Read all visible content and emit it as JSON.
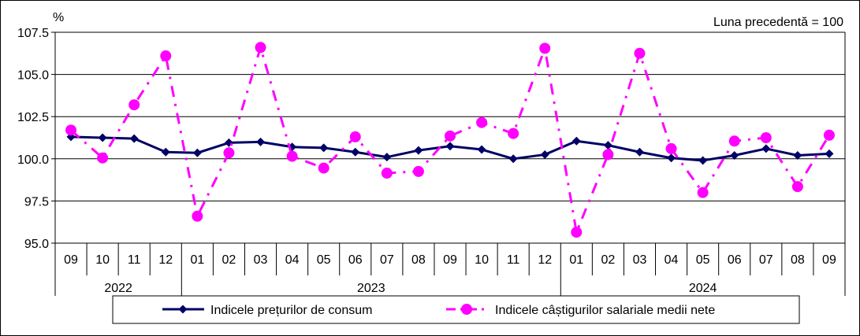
{
  "chart_data": {
    "type": "line",
    "y_unit": "%",
    "note": "Luna precedentă = 100",
    "ylim": [
      95.0,
      107.5
    ],
    "yticks": [
      "95.0",
      "97.5",
      "100.0",
      "102.5",
      "105.0",
      "107.5"
    ],
    "ytick_values": [
      95.0,
      97.5,
      100.0,
      102.5,
      105.0,
      107.5
    ],
    "grid": true,
    "months": [
      "09",
      "10",
      "11",
      "12",
      "01",
      "02",
      "03",
      "04",
      "05",
      "06",
      "07",
      "08",
      "09",
      "10",
      "11",
      "12",
      "01",
      "02",
      "03",
      "04",
      "05",
      "06",
      "07",
      "08",
      "09"
    ],
    "years": [
      {
        "label": "2022",
        "start": 0,
        "end": 3
      },
      {
        "label": "2023",
        "start": 4,
        "end": 15
      },
      {
        "label": "2024",
        "start": 16,
        "end": 24
      }
    ],
    "series": [
      {
        "name": "Indicele prețurilor de consum",
        "color": "#000066",
        "style": "solid-diamond",
        "values": [
          101.3,
          101.25,
          101.2,
          100.4,
          100.35,
          100.95,
          101.0,
          100.7,
          100.65,
          100.4,
          100.1,
          100.5,
          100.75,
          100.55,
          100.0,
          100.25,
          101.05,
          100.8,
          100.4,
          100.05,
          99.9,
          100.2,
          100.6,
          100.2,
          100.3
        ]
      },
      {
        "name": "Indicele câștigurilor salariale medii nete",
        "color": "#FF00FF",
        "style": "dashdot-circle",
        "values": [
          101.7,
          100.05,
          103.2,
          106.1,
          96.6,
          100.35,
          106.6,
          100.15,
          99.45,
          101.3,
          99.15,
          99.25,
          101.35,
          102.15,
          101.5,
          106.55,
          95.65,
          100.25,
          106.25,
          100.6,
          98.0,
          101.05,
          101.25,
          98.35,
          101.4
        ]
      }
    ]
  },
  "legend": {
    "cpi_label": "Indicele prețurilor de consum",
    "wage_label": "Indicele câștigurilor salariale medii nete"
  }
}
